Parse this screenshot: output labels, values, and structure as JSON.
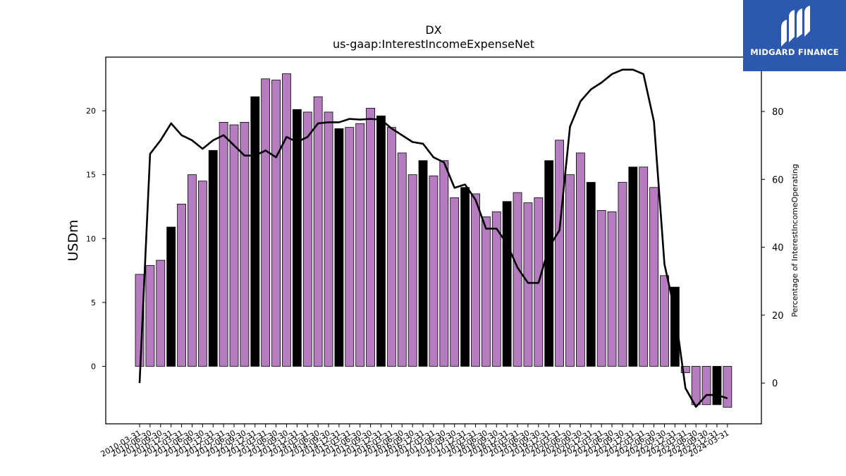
{
  "chart_data": {
    "type": "bar",
    "title": "DX",
    "subtitle": "us-gaap:InterestIncomeExpenseNet",
    "ylabel": "USDm",
    "y2label": "Percentage of InterestIncomeOperating",
    "ylim": [
      -4.5,
      24.2
    ],
    "y2lim": [
      -12,
      96
    ],
    "yticks": [
      0,
      5,
      10,
      15,
      20
    ],
    "y2ticks": [
      0,
      20,
      40,
      60,
      80
    ],
    "grid": false,
    "colors": {
      "bar": "#b57cbf",
      "bar_highlight": "#000000",
      "line": "#000000"
    },
    "categories": [
      "2010-03-31",
      "2010-06-30",
      "2010-09-30",
      "2010-12-31",
      "2011-03-31",
      "2011-06-30",
      "2011-09-30",
      "2011-12-31",
      "2012-03-31",
      "2012-06-30",
      "2012-09-30",
      "2012-12-31",
      "2013-03-31",
      "2013-06-30",
      "2013-09-30",
      "2013-12-31",
      "2014-03-31",
      "2014-06-30",
      "2014-09-30",
      "2014-12-31",
      "2015-03-31",
      "2015-06-30",
      "2015-09-30",
      "2015-12-31",
      "2016-03-31",
      "2016-06-30",
      "2016-09-30",
      "2016-12-31",
      "2017-03-31",
      "2017-06-30",
      "2017-09-30",
      "2017-12-31",
      "2018-03-31",
      "2018-06-30",
      "2018-09-30",
      "2018-12-31",
      "2019-03-31",
      "2019-06-30",
      "2019-09-30",
      "2019-12-31",
      "2020-03-31",
      "2020-06-30",
      "2020-09-30",
      "2020-12-31",
      "2021-03-31",
      "2021-06-30",
      "2021-09-30",
      "2021-12-31",
      "2022-03-31",
      "2022-06-30",
      "2022-09-30",
      "2022-12-31",
      "2023-03-31",
      "2023-06-30",
      "2023-09-30",
      "2023-12-31",
      "2024-03-31"
    ],
    "tick_labels": [
      "2010-03-31",
      "2010-06-30",
      "2010-09-30",
      "2010-12-31",
      "2011-03-31",
      "2011-06-30",
      "2011-09-30",
      "2011-12-31",
      "2012-03-31",
      "2012-06-30",
      "2012-09-30",
      "2012-12-31",
      "2013-03-31",
      "2013-06-30",
      "2013-09-30",
      "2013-12-31",
      "2014-03-31",
      "2014-06-30",
      "2014-09-30",
      "2014-12-31",
      "2015-03-31",
      "2015-06-30",
      "2015-09-30",
      "2015-12-31",
      "2016-03-31",
      "2016-06-30",
      "2016-09-30",
      "2016-12-31",
      "2017-03-31",
      "2017-06-30",
      "2017-09-30",
      "2017-12-31",
      "2018-03-31",
      "2018-06-30",
      "2018-09-30",
      "2018-12-31",
      "2019-03-31",
      "2019-06-30",
      "2019-09-30",
      "2019-12-31",
      "2020-03-31",
      "2020-06-30",
      "2020-09-30",
      "2020-12-31",
      "2021-03-31",
      "2021-06-30",
      "2021-09-30",
      "2021-12-31",
      "2022-03-31",
      "2022-06-30",
      "2022-09-30",
      "2022-12-31",
      "2023-03-31",
      "2023-06-30",
      "2023-09-30",
      "2023-12-31",
      "2024-03-31"
    ],
    "series": [
      {
        "type": "bar",
        "axis": "left",
        "values": [
          7.2,
          7.9,
          8.3,
          10.9,
          12.7,
          15.0,
          14.5,
          16.9,
          19.1,
          18.9,
          19.1,
          21.1,
          22.5,
          22.4,
          22.9,
          20.1,
          19.9,
          21.1,
          19.9,
          18.6,
          18.7,
          19.0,
          20.2,
          19.6,
          18.7,
          16.7,
          15.0,
          16.1,
          14.9,
          16.1,
          13.2,
          14.0,
          13.5,
          11.7,
          12.1,
          12.9,
          13.6,
          12.8,
          13.2,
          16.1,
          17.7,
          15.0,
          16.7,
          14.4,
          12.2,
          12.1,
          14.4,
          15.6,
          15.6,
          14.0,
          7.1,
          6.2,
          -0.5,
          -3.0,
          -3.0,
          -3.0,
          -3.2
        ],
        "highlight": [
          false,
          false,
          false,
          true,
          false,
          false,
          false,
          true,
          false,
          false,
          false,
          true,
          false,
          false,
          false,
          true,
          false,
          false,
          false,
          true,
          false,
          false,
          false,
          true,
          false,
          false,
          false,
          true,
          false,
          false,
          false,
          true,
          false,
          false,
          false,
          true,
          false,
          false,
          false,
          true,
          false,
          false,
          false,
          true,
          false,
          false,
          false,
          true,
          false,
          false,
          false,
          true,
          false,
          false,
          false,
          true,
          false
        ]
      },
      {
        "type": "line",
        "axis": "right",
        "values": [
          0,
          67.5,
          71.5,
          76.5,
          73,
          71.5,
          69,
          71.5,
          73,
          70,
          67,
          67,
          68.5,
          66.5,
          72.5,
          71,
          72.5,
          76.5,
          76.8,
          76.8,
          77.8,
          77.6,
          77.8,
          77.6,
          75,
          73,
          71,
          70.5,
          66.5,
          65,
          57.5,
          58.5,
          54,
          45.5,
          45.5,
          41,
          34,
          29.5,
          29.5,
          40,
          45,
          75.5,
          83,
          86.5,
          88.5,
          91,
          92.3,
          92.3,
          91,
          77,
          35,
          21,
          -1.5,
          -7,
          -3.5,
          -3.5,
          -4.5
        ]
      }
    ]
  },
  "branding": {
    "name": "MIDGARD FINANCE",
    "logo_icon": "midgard-logo-icon"
  }
}
